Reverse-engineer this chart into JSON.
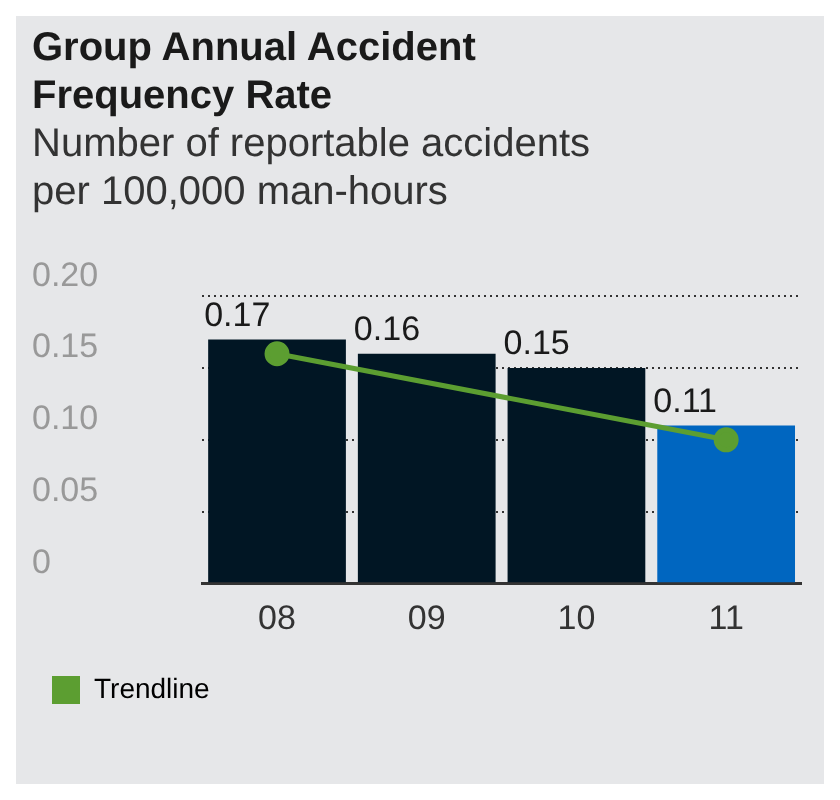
{
  "chart_data": {
    "type": "bar",
    "title": "Group Annual Accident Frequency Rate",
    "subtitle": "Number of reportable accidents per 100,000 man-hours",
    "categories": [
      "08",
      "09",
      "10",
      "11"
    ],
    "series": [
      {
        "colors": [
          "#011624",
          "#011624",
          "#011624",
          "#0066c0"
        ],
        "values": [
          0.17,
          0.16,
          0.15,
          0.11
        ],
        "value_labels": [
          "0.17",
          "0.16",
          "0.15",
          "0.11"
        ]
      },
      {
        "type": "line",
        "name": "Trendline",
        "color": "#5c9e31",
        "x": [
          "08",
          "11"
        ],
        "values": [
          0.16,
          0.1
        ]
      }
    ],
    "ylim": [
      0,
      0.2
    ],
    "yticks": [
      0,
      {
        "value": 0.05,
        "label": "0.05"
      },
      {
        "value": 0.1,
        "label": "0.10"
      },
      {
        "value": 0.15,
        "label": "0.15"
      },
      {
        "value": 0.2,
        "label": "0.20"
      }
    ],
    "grid": "y",
    "legend": "bottom left",
    "marker": "circle"
  }
}
